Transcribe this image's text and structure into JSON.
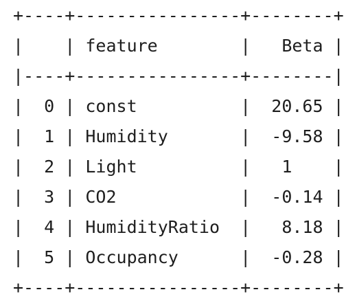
{
  "table": {
    "lines": [
      "+----+----------------+--------+",
      "|    | feature        |   Beta |",
      "|----+----------------+--------|",
      "|  0 | const          |  20.65 |",
      "|  1 | Humidity       |  -9.58 |",
      "|  2 | Light          |   1    |",
      "|  3 | CO2            |  -0.14 |",
      "|  4 | HumidityRatio  |   8.18 |",
      "|  5 | Occupancy      |  -0.28 |",
      "+----+----------------+--------+"
    ]
  }
}
